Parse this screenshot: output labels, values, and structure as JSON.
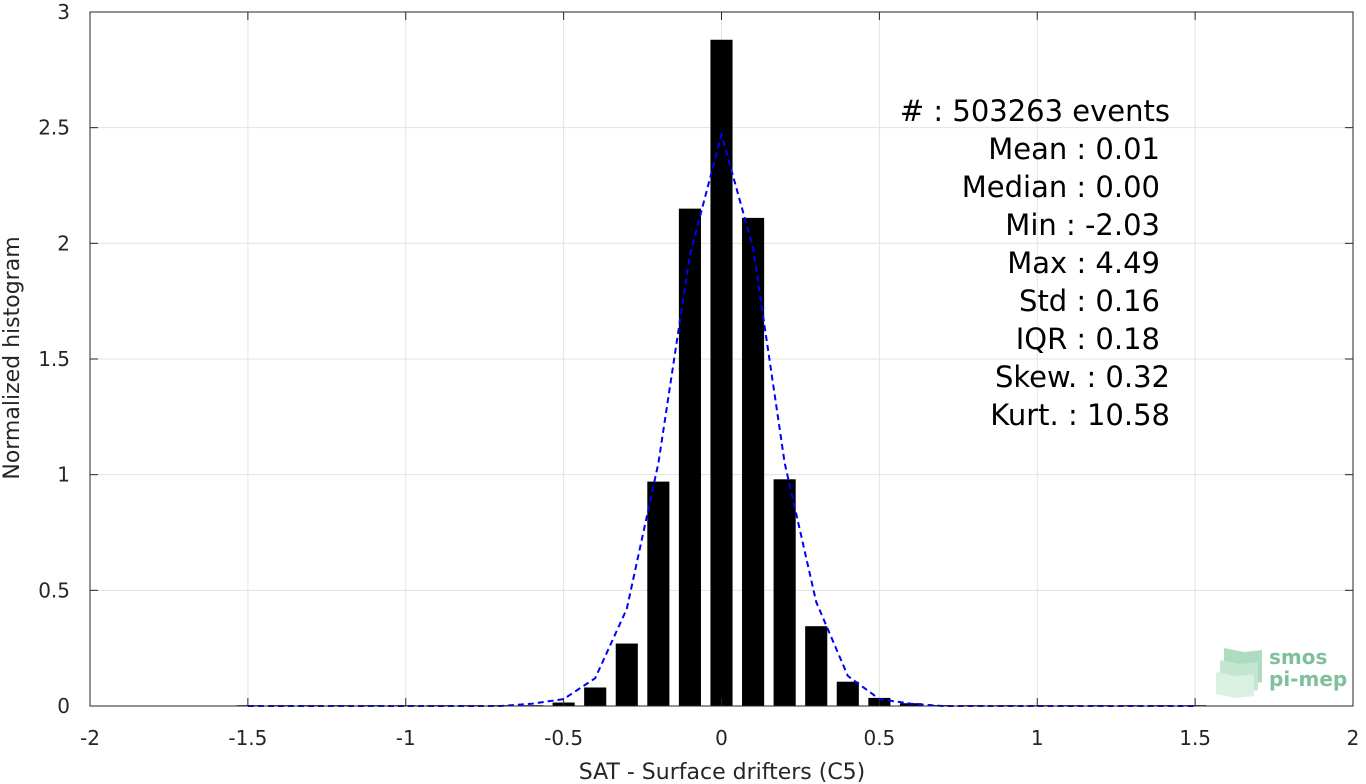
{
  "chart_data": {
    "type": "bar",
    "xlabel": "SAT - Surface drifters (C5)",
    "ylabel": "Normalized histogram",
    "xlim": [
      -2,
      2
    ],
    "ylim": [
      0,
      3
    ],
    "xticks": [
      "-2",
      "-1.5",
      "-1",
      "-0.5",
      "0",
      "0.5",
      "1",
      "1.5",
      "2"
    ],
    "yticks": [
      "0",
      "0.5",
      "1",
      "1.5",
      "2",
      "2.5",
      "3"
    ],
    "grid": true,
    "bar_color": "#000000",
    "fit_color": "#0000ff",
    "bins": [
      -1.5,
      -1.4,
      -1.3,
      -1.2,
      -1.1,
      -1.0,
      -0.9,
      -0.8,
      -0.7,
      -0.6,
      -0.5,
      -0.4,
      -0.3,
      -0.2,
      -0.1,
      0.0,
      0.1,
      0.2,
      0.3,
      0.4,
      0.5,
      0.6,
      0.7,
      0.8,
      0.9,
      1.0,
      1.1,
      1.2,
      1.3,
      1.4,
      1.5
    ],
    "values": [
      0,
      0,
      0,
      0,
      0,
      0,
      0,
      0,
      0,
      0.002,
      0.015,
      0.08,
      0.27,
      0.97,
      2.15,
      2.88,
      2.11,
      0.98,
      0.345,
      0.105,
      0.035,
      0.012,
      0.004,
      0.002,
      0.001,
      0,
      0,
      0,
      0,
      0,
      0
    ],
    "fit": {
      "x": [
        -1.5,
        -1.4,
        -1.3,
        -1.2,
        -1.1,
        -1.0,
        -0.9,
        -0.8,
        -0.7,
        -0.6,
        -0.5,
        -0.4,
        -0.3,
        -0.2,
        -0.1,
        0.0,
        0.1,
        0.2,
        0.3,
        0.4,
        0.5,
        0.6,
        0.7,
        0.8,
        0.9,
        1.0,
        1.1,
        1.2,
        1.3,
        1.4,
        1.5
      ],
      "y": [
        0,
        0,
        0,
        0,
        0,
        0,
        0,
        0,
        0,
        0.01,
        0.03,
        0.12,
        0.42,
        1.05,
        1.95,
        2.47,
        1.98,
        1.05,
        0.45,
        0.13,
        0.03,
        0.01,
        0,
        0,
        0,
        0,
        0,
        0,
        0,
        0,
        0
      ]
    },
    "stats": [
      "#  : 503263 events",
      "Mean : 0.01",
      "Median : 0.00",
      "Min : -2.03",
      "Max : 4.49",
      "Std : 0.16",
      "IQR : 0.18",
      "Skew. : 0.32",
      "Kurt. : 10.58"
    ]
  },
  "logo": {
    "line1": "smos",
    "line2": "pi-mep",
    "color": "#7fbf9c"
  }
}
